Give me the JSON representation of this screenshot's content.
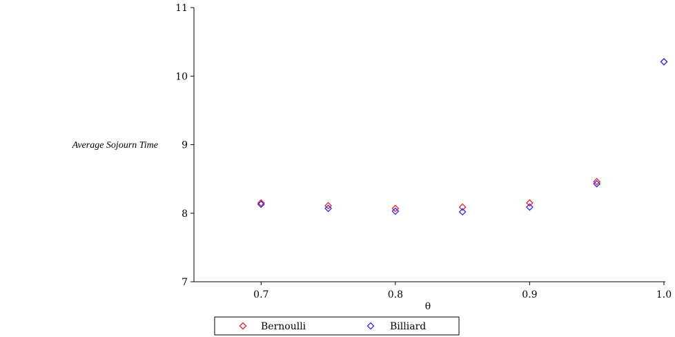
{
  "chart_data": {
    "type": "scatter",
    "xlabel": "θ",
    "ylabel": "Average Sojourn Time",
    "xlim": [
      0.65,
      1.0
    ],
    "ylim": [
      7,
      11
    ],
    "x_ticks": [
      0.7,
      0.8,
      0.9,
      1.0
    ],
    "x_tick_labels": [
      "0.7",
      "0.8",
      "0.9",
      "1.0"
    ],
    "y_ticks": [
      7,
      8,
      9,
      10,
      11
    ],
    "y_tick_labels": [
      "7",
      "8",
      "9",
      "10",
      "11"
    ],
    "grid": false,
    "legend_position": "bottom-center",
    "marker": "diamond-outline",
    "series": [
      {
        "name": "Bernoulli",
        "color": "#e8202a",
        "x": [
          0.7,
          0.75,
          0.8,
          0.85,
          0.9,
          0.95,
          1.0
        ],
        "y": [
          8.15,
          8.11,
          8.07,
          8.09,
          8.15,
          8.46,
          10.21
        ]
      },
      {
        "name": "Billiard",
        "color": "#2a2ae8",
        "x": [
          0.7,
          0.75,
          0.8,
          0.85,
          0.9,
          0.95,
          1.0
        ],
        "y": [
          8.13,
          8.07,
          8.03,
          8.02,
          8.09,
          8.43,
          10.21
        ]
      }
    ]
  }
}
